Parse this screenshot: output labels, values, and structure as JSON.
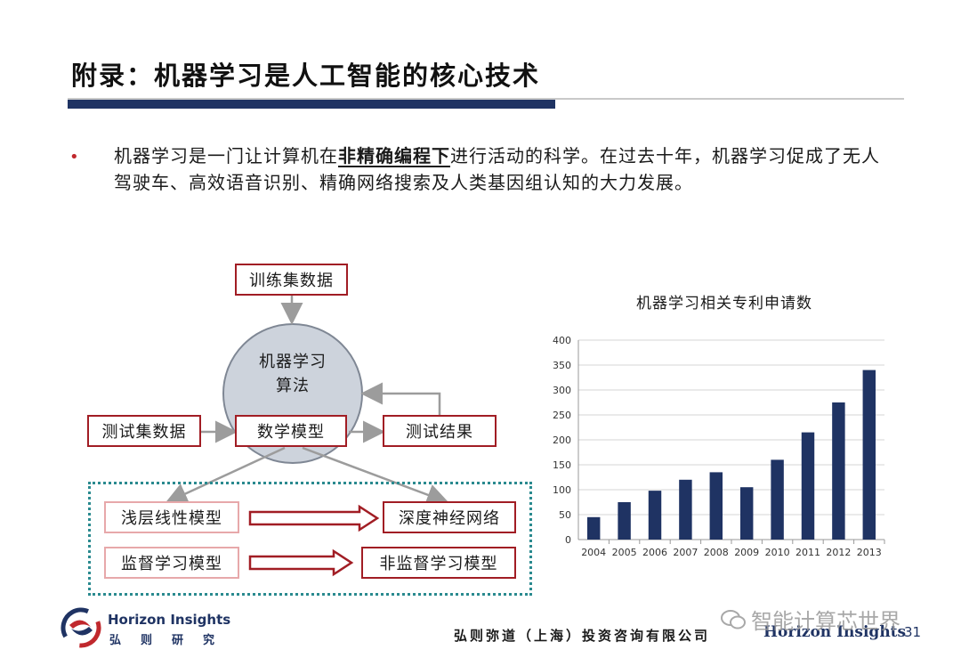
{
  "slide": {
    "title": "附录：机器学习是人工智能的核心技术",
    "bullet": {
      "before": "机器学习是一门让计算机在",
      "emphasis": "非精确编程下",
      "after": "进行活动的科学。在过去十年，机器学习促成了无人驾驶车、高效语音识别、精确网络搜索及人类基因组认知的大力发展。"
    }
  },
  "diagram": {
    "training_data": "训练集数据",
    "algorithm_line1": "机器学习",
    "algorithm_line2": "算法",
    "test_data": "测试集数据",
    "math_model": "数学模型",
    "test_result": "测试结果",
    "shallow_model": "浅层线性模型",
    "deep_network": "深度神经网络",
    "supervised_model": "监督学习模型",
    "unsupervised_model": "非监督学习模型"
  },
  "chart_data": {
    "type": "bar",
    "title": "机器学习相关专利申请数",
    "categories": [
      "2004",
      "2005",
      "2006",
      "2007",
      "2008",
      "2009",
      "2010",
      "2011",
      "2012",
      "2013"
    ],
    "values": [
      45,
      75,
      98,
      120,
      135,
      105,
      160,
      215,
      275,
      340
    ],
    "ylim": [
      0,
      400
    ],
    "yticks": [
      0,
      50,
      100,
      150,
      200,
      250,
      300,
      350,
      400
    ],
    "grid": true,
    "bar_color": "#1f3363"
  },
  "footer": {
    "logo_en": "Horizon Insights",
    "logo_cn": "弘则研究",
    "company": "弘则弥道（上海）投资咨询有限公司",
    "brand": "Horizon Insights",
    "page_partial": "31",
    "watermark": "智能计算芯世界"
  },
  "colors": {
    "navy": "#1f3363",
    "red": "#a11d24",
    "teal": "#2a8a8f"
  }
}
